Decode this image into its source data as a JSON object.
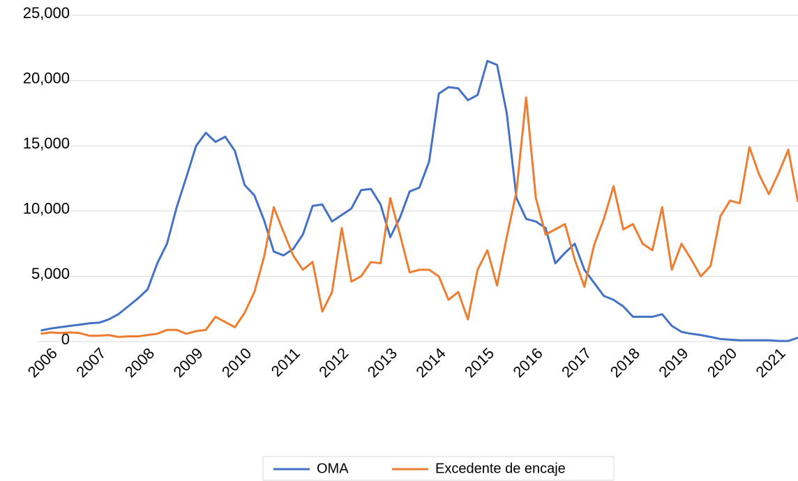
{
  "chart_data": {
    "type": "line",
    "x": [
      2005.7,
      2005.9,
      2006.1,
      2006.3,
      2006.5,
      2006.7,
      2006.9,
      2007.1,
      2007.3,
      2007.5,
      2007.7,
      2007.9,
      2008.1,
      2008.3,
      2008.5,
      2008.7,
      2008.9,
      2009.1,
      2009.3,
      2009.5,
      2009.7,
      2009.9,
      2010.1,
      2010.3,
      2010.5,
      2010.7,
      2010.9,
      2011.1,
      2011.3,
      2011.5,
      2011.7,
      2011.9,
      2012.1,
      2012.3,
      2012.5,
      2012.7,
      2012.9,
      2013.1,
      2013.3,
      2013.5,
      2013.7,
      2013.9,
      2014.1,
      2014.3,
      2014.5,
      2014.7,
      2014.9,
      2015.1,
      2015.3,
      2015.5,
      2015.7,
      2015.9,
      2016.1,
      2016.3,
      2016.5,
      2016.7,
      2016.9,
      2017.1,
      2017.3,
      2017.5,
      2017.7,
      2017.9,
      2018.1,
      2018.3,
      2018.5,
      2018.7,
      2018.9,
      2019.1,
      2019.3,
      2019.5,
      2019.7,
      2019.9,
      2020.1,
      2020.3,
      2020.5,
      2020.7,
      2020.9,
      2021.1,
      2021.3
    ],
    "xlim": [
      2005.65,
      2021.3
    ],
    "xticks": [
      2006,
      2007,
      2008,
      2009,
      2010,
      2011,
      2012,
      2013,
      2014,
      2015,
      2016,
      2017,
      2018,
      2019,
      2020,
      2021
    ],
    "ylim": [
      0,
      25000
    ],
    "yticks": [
      0,
      {
        "value": 5000,
        "label": "5,000"
      },
      {
        "value": 10000,
        "label": "10,000"
      },
      {
        "value": 15000,
        "label": "15,000"
      },
      {
        "value": 20000,
        "label": "20,000"
      },
      {
        "value": 25000,
        "label": "25,000"
      }
    ],
    "grid": true,
    "legend": "bottom",
    "series": [
      {
        "name": "OMA",
        "color": "#4472c4",
        "values": [
          850,
          1000,
          1100,
          1200,
          1300,
          1400,
          1450,
          1700,
          2100,
          2700,
          3300,
          4000,
          6000,
          7500,
          10300,
          12600,
          15000,
          16000,
          15300,
          15700,
          14600,
          12000,
          11200,
          9300,
          6900,
          6600,
          7100,
          8200,
          10400,
          10500,
          9200,
          9700,
          10200,
          11600,
          11700,
          10500,
          8000,
          9500,
          11500,
          11800,
          13800,
          19000,
          19500,
          19400,
          18500,
          18900,
          21500,
          21200,
          17500,
          11000,
          9400,
          9200,
          8700,
          6000,
          6800,
          7500,
          5500,
          4500,
          3500,
          3200,
          2700,
          1900,
          1900,
          1900,
          2100,
          1200,
          750,
          600,
          500,
          350,
          200,
          150,
          100,
          100,
          100,
          100,
          50,
          50,
          300
        ]
      },
      {
        "name": "Excedente de encaje",
        "color": "#ed7d31",
        "values": [
          600,
          700,
          650,
          700,
          650,
          450,
          450,
          500,
          350,
          400,
          400,
          500,
          600,
          900,
          900,
          600,
          800,
          900,
          1900,
          1500,
          1100,
          2200,
          3800,
          6500,
          10300,
          8400,
          6600,
          5500,
          6100,
          2300,
          3800,
          8700,
          4600,
          5000,
          6100,
          6000,
          11000,
          8200,
          5300,
          5500,
          5500,
          5000,
          3200,
          3800,
          1700,
          5500,
          7000,
          4300,
          8000,
          11500,
          18700,
          11000,
          8200,
          8600,
          9000,
          6300,
          4200,
          7400,
          9400,
          11900,
          8600,
          9000,
          7500,
          7000,
          10300,
          5500,
          7500,
          6300,
          5000,
          5800,
          9600,
          10800,
          10600,
          14900,
          12800,
          11300,
          12900,
          14700,
          10700
        ]
      }
    ]
  }
}
